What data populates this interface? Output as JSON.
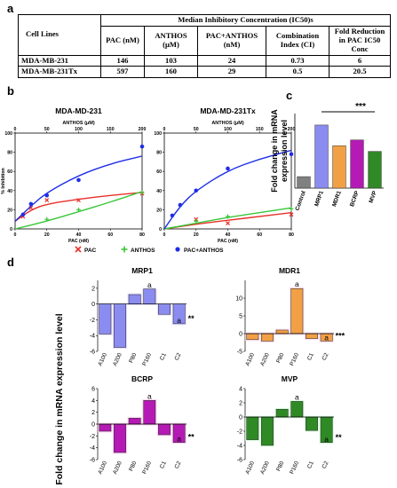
{
  "panel_labels": {
    "a": "a",
    "b": "b",
    "c": "c",
    "d": "d"
  },
  "table": {
    "corner": "Cell Lines",
    "group_header": "Median Inhibitory Concentration (IC50)s",
    "columns": [
      "PAC (nM)",
      "ANTHOS (μM)",
      "PAC+ANTHOS (nM)",
      "Combination Index (CI)",
      "Fold Reduction in PAC IC50 Conc"
    ],
    "rows": [
      {
        "label": "MDA-MB-231",
        "cells": [
          "146",
          "103",
          "24",
          "0.73",
          "6"
        ]
      },
      {
        "label": "MDA-MB-231Tx",
        "cells": [
          "597",
          "160",
          "29",
          "0.5",
          "20.5"
        ]
      }
    ]
  },
  "colors": {
    "pac": "#e8302a",
    "anthos": "#39c639",
    "combo": "#1f2ee6",
    "control": "#808080",
    "mrp1": "#8b8cf0",
    "mdr1": "#f2a046",
    "bcrp": "#b51ab5",
    "mvp": "#2f8a25"
  },
  "chart_data": [
    {
      "type": "scatter",
      "title": "MDA-MD-231",
      "top_axis_label": "ANTHOS (μM)",
      "xlabel": "PAC (nM)",
      "ylabel": "% Inhibition",
      "xlim": [
        0,
        80
      ],
      "ylim": [
        0,
        100
      ],
      "top_xlim": [
        0,
        200
      ],
      "x_ticks": [
        0,
        20,
        40,
        60,
        80
      ],
      "top_ticks": [
        0,
        50,
        100,
        150,
        200
      ],
      "y_ticks": [
        0,
        20,
        40,
        60,
        80,
        100
      ],
      "series": [
        {
          "name": "PAC",
          "marker": "x",
          "points": [
            [
              5,
              13
            ],
            [
              10,
              22
            ],
            [
              20,
              30
            ],
            [
              40,
              30
            ],
            [
              80,
              37
            ]
          ],
          "curve": [
            [
              0,
              8
            ],
            [
              10,
              20
            ],
            [
              20,
              26
            ],
            [
              40,
              31
            ],
            [
              60,
              35
            ],
            [
              80,
              38
            ]
          ]
        },
        {
          "name": "ANTHOS",
          "marker": "+",
          "points": [
            [
              20,
              10
            ],
            [
              40,
              20
            ],
            [
              80,
              38
            ]
          ],
          "curve": [
            [
              0,
              0
            ],
            [
              20,
              8
            ],
            [
              40,
              18
            ],
            [
              60,
              28
            ],
            [
              80,
              39
            ]
          ]
        },
        {
          "name": "PAC+ANTHOS",
          "marker": "o",
          "points": [
            [
              5,
              15
            ],
            [
              10,
              26
            ],
            [
              20,
              35
            ],
            [
              40,
              51
            ],
            [
              80,
              86
            ]
          ],
          "curve": [
            [
              0,
              8
            ],
            [
              10,
              24
            ],
            [
              20,
              38
            ],
            [
              40,
              56
            ],
            [
              60,
              68
            ],
            [
              80,
              76
            ]
          ]
        }
      ]
    },
    {
      "type": "scatter",
      "title": "MDA-MD-231Tx",
      "top_axis_label": "ANTHOS (μM)",
      "xlabel": "PAC (nM)",
      "ylabel": "",
      "xlim": [
        0,
        80
      ],
      "ylim": [
        0,
        100
      ],
      "top_xlim": [
        0,
        200
      ],
      "x_ticks": [
        0,
        20,
        40,
        60,
        80
      ],
      "top_ticks": [
        0,
        50,
        100,
        150,
        200
      ],
      "y_ticks": [
        0,
        20,
        40,
        60,
        80,
        100
      ],
      "series": [
        {
          "name": "PAC",
          "marker": "x",
          "points": [
            [
              20,
              10
            ],
            [
              40,
              6
            ],
            [
              80,
              15
            ]
          ],
          "curve": [
            [
              0,
              0
            ],
            [
              20,
              5
            ],
            [
              40,
              9
            ],
            [
              60,
              13
            ],
            [
              80,
              17
            ]
          ]
        },
        {
          "name": "ANTHOS",
          "marker": "+",
          "points": [
            [
              20,
              8
            ],
            [
              40,
              13
            ],
            [
              80,
              21
            ]
          ],
          "curve": [
            [
              0,
              0
            ],
            [
              20,
              6
            ],
            [
              40,
              12
            ],
            [
              60,
              17
            ],
            [
              80,
              22
            ]
          ]
        },
        {
          "name": "PAC+ANTHOS",
          "marker": "o",
          "points": [
            [
              5,
              14
            ],
            [
              10,
              25
            ],
            [
              20,
              40
            ],
            [
              40,
              63
            ],
            [
              80,
              78
            ]
          ],
          "curve": [
            [
              0,
              0
            ],
            [
              10,
              24
            ],
            [
              20,
              40
            ],
            [
              40,
              61
            ],
            [
              60,
              73
            ],
            [
              80,
              82
            ]
          ]
        }
      ]
    },
    {
      "type": "bar",
      "ylabel": "Fold change in mRNA expression level",
      "categories": [
        "Control",
        "MRP1",
        "MDR1",
        "BCRP",
        "MVP"
      ],
      "values": [
        1.0,
        5.5,
        3.7,
        4.2,
        3.2
      ],
      "ylim": [
        0,
        6.5
      ],
      "significance": "***"
    },
    {
      "type": "bar",
      "title": "MRP1",
      "categories": [
        "A100",
        "A200",
        "P80",
        "P160",
        "C1",
        "C2"
      ],
      "values": [
        -3.8,
        -5.5,
        1.2,
        1.9,
        -1.3,
        -2.5
      ],
      "ylim": [
        -6,
        3
      ],
      "y_ticks": [
        -6,
        -4,
        -2,
        0,
        2
      ],
      "annotations": [
        {
          "cat": "P160",
          "text": "a"
        },
        {
          "cat": "C2",
          "text": "a"
        }
      ],
      "significance": "**"
    },
    {
      "type": "bar",
      "title": "MDR1",
      "categories": [
        "A100",
        "A200",
        "P80",
        "P160",
        "C1",
        "C2"
      ],
      "values": [
        -1.7,
        -2.1,
        1.0,
        12.7,
        -1.4,
        -2.1
      ],
      "ylim": [
        -5,
        15
      ],
      "y_ticks": [
        -5,
        0,
        5,
        10
      ],
      "annotations": [
        {
          "cat": "P160",
          "text": "a"
        },
        {
          "cat": "C2",
          "text": "a"
        }
      ],
      "significance": "***"
    },
    {
      "type": "bar",
      "title": "BCRP",
      "categories": [
        "A100",
        "A200",
        "P80",
        "P160",
        "C1",
        "C2"
      ],
      "values": [
        -1.2,
        -4.8,
        1.0,
        4.0,
        -1.8,
        -3.1
      ],
      "ylim": [
        -6,
        6
      ],
      "y_ticks": [
        -6,
        -4,
        -2,
        0,
        2,
        4,
        6
      ],
      "annotations": [
        {
          "cat": "P160",
          "text": "a"
        },
        {
          "cat": "C2",
          "text": "a"
        }
      ],
      "significance": "**"
    },
    {
      "type": "bar",
      "title": "MVP",
      "categories": [
        "A100",
        "A200",
        "P80",
        "P160",
        "C1",
        "C2"
      ],
      "values": [
        -3.2,
        -4.0,
        1.1,
        2.2,
        -1.9,
        -3.6
      ],
      "ylim": [
        -6,
        4
      ],
      "y_ticks": [
        -6,
        -4,
        -2,
        0,
        2,
        4
      ],
      "annotations": [
        {
          "cat": "P160",
          "text": "a"
        },
        {
          "cat": "C2",
          "text": "a"
        }
      ],
      "significance": "**"
    }
  ],
  "panel_d_ylabel": "Fold change in mRNA expression level"
}
